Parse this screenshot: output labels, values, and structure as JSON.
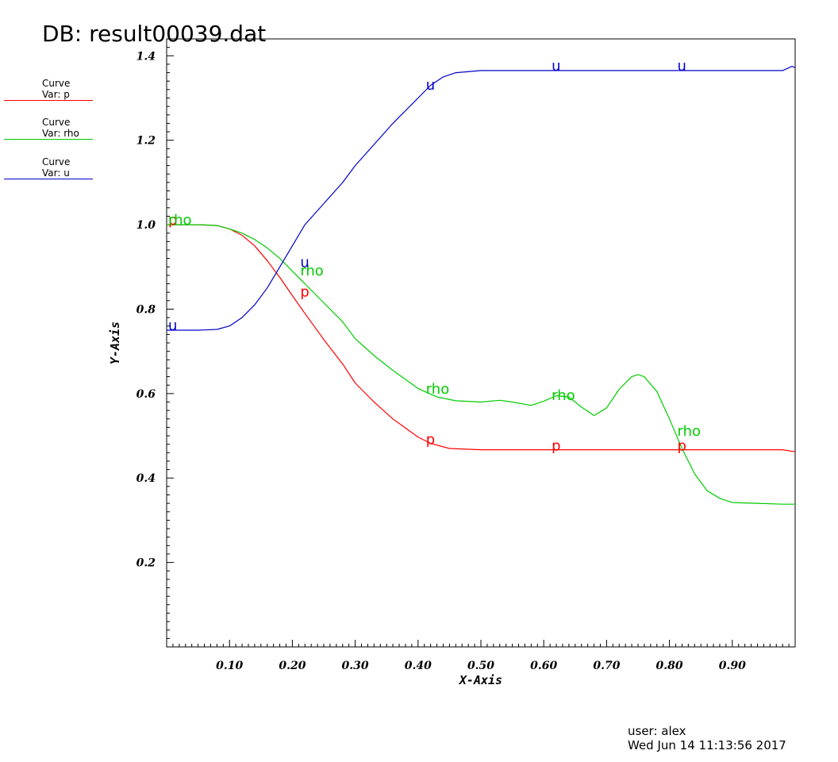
{
  "title": "DB: result00039.dat",
  "legend": [
    {
      "line1": "Curve",
      "line2": "Var: p",
      "color": "#ff0000"
    },
    {
      "line1": "Curve",
      "line2": "Var: rho",
      "color": "#00cc00"
    },
    {
      "line1": "Curve",
      "line2": "Var: u",
      "color": "#0000cc"
    }
  ],
  "footer": {
    "user": "user: alex",
    "date": "Wed Jun 14 11:13:56 2017"
  },
  "chart_data": {
    "type": "line",
    "title": "DB: result00039.dat",
    "xlabel": "X-Axis",
    "ylabel": "Y-Axis",
    "xlim": [
      0.0,
      1.0
    ],
    "ylim": [
      0.0,
      1.44
    ],
    "xticks": [
      0.1,
      0.2,
      0.3,
      0.4,
      0.5,
      0.6,
      0.7,
      0.8,
      0.9
    ],
    "xtick_labels": [
      "0.10",
      "0.20",
      "0.30",
      "0.40",
      "0.50",
      "0.60",
      "0.70",
      "0.80",
      "0.90"
    ],
    "yticks": [
      0.2,
      0.4,
      0.6,
      0.8,
      1.0,
      1.2,
      1.4
    ],
    "ytick_labels": [
      "0.2",
      "0.4",
      "0.6",
      "0.8",
      "1.0",
      "1.2",
      "1.4"
    ],
    "grid": false,
    "series": [
      {
        "name": "p",
        "color": "#ff0000",
        "x": [
          0.0,
          0.05,
          0.08,
          0.1,
          0.12,
          0.14,
          0.16,
          0.18,
          0.2,
          0.22,
          0.25,
          0.28,
          0.3,
          0.33,
          0.36,
          0.4,
          0.42,
          0.45,
          0.5,
          0.6,
          0.7,
          0.8,
          0.9,
          0.98,
          1.0
        ],
        "y": [
          1.0,
          1.0,
          0.998,
          0.99,
          0.975,
          0.95,
          0.915,
          0.875,
          0.832,
          0.79,
          0.728,
          0.67,
          0.625,
          0.58,
          0.54,
          0.497,
          0.482,
          0.47,
          0.467,
          0.467,
          0.467,
          0.467,
          0.467,
          0.467,
          0.462
        ]
      },
      {
        "name": "rho",
        "color": "#00cc00",
        "x": [
          0.0,
          0.05,
          0.08,
          0.1,
          0.12,
          0.14,
          0.16,
          0.18,
          0.2,
          0.22,
          0.25,
          0.28,
          0.3,
          0.33,
          0.36,
          0.4,
          0.43,
          0.46,
          0.5,
          0.53,
          0.55,
          0.58,
          0.6,
          0.62,
          0.64,
          0.66,
          0.68,
          0.7,
          0.72,
          0.74,
          0.75,
          0.76,
          0.78,
          0.8,
          0.82,
          0.84,
          0.86,
          0.88,
          0.9,
          0.94,
          0.98,
          1.0
        ],
        "y": [
          1.0,
          1.0,
          0.998,
          0.99,
          0.98,
          0.965,
          0.945,
          0.92,
          0.89,
          0.86,
          0.815,
          0.77,
          0.73,
          0.69,
          0.655,
          0.612,
          0.592,
          0.583,
          0.58,
          0.584,
          0.58,
          0.572,
          0.582,
          0.595,
          0.592,
          0.568,
          0.548,
          0.566,
          0.61,
          0.64,
          0.645,
          0.64,
          0.605,
          0.54,
          0.47,
          0.41,
          0.37,
          0.352,
          0.342,
          0.34,
          0.338,
          0.338
        ]
      },
      {
        "name": "u",
        "color": "#0000cc",
        "x": [
          0.0,
          0.05,
          0.08,
          0.1,
          0.12,
          0.14,
          0.16,
          0.18,
          0.2,
          0.22,
          0.25,
          0.28,
          0.3,
          0.33,
          0.36,
          0.4,
          0.42,
          0.44,
          0.46,
          0.5,
          0.6,
          0.7,
          0.8,
          0.9,
          0.98,
          0.995,
          1.0
        ],
        "y": [
          0.75,
          0.75,
          0.752,
          0.76,
          0.78,
          0.81,
          0.85,
          0.9,
          0.95,
          1.0,
          1.05,
          1.1,
          1.14,
          1.19,
          1.24,
          1.3,
          1.33,
          1.35,
          1.36,
          1.365,
          1.365,
          1.365,
          1.365,
          1.365,
          1.365,
          1.375,
          1.372
        ]
      }
    ],
    "curve_labels": [
      {
        "text": "p",
        "series": "p",
        "x": 0.0,
        "y": 1.0
      },
      {
        "text": "p",
        "series": "p",
        "x": 0.21,
        "y": 0.83
      },
      {
        "text": "p",
        "series": "p",
        "x": 0.41,
        "y": 0.48
      },
      {
        "text": "p",
        "series": "p",
        "x": 0.61,
        "y": 0.465
      },
      {
        "text": "p",
        "series": "p",
        "x": 0.81,
        "y": 0.465
      },
      {
        "text": "rho",
        "series": "rho",
        "x": 0.0,
        "y": 1.0
      },
      {
        "text": "rho",
        "series": "rho",
        "x": 0.21,
        "y": 0.88
      },
      {
        "text": "rho",
        "series": "rho",
        "x": 0.41,
        "y": 0.6
      },
      {
        "text": "rho",
        "series": "rho",
        "x": 0.61,
        "y": 0.585
      },
      {
        "text": "rho",
        "series": "rho",
        "x": 0.81,
        "y": 0.5
      },
      {
        "text": "u",
        "series": "u",
        "x": 0.0,
        "y": 0.75
      },
      {
        "text": "u",
        "series": "u",
        "x": 0.21,
        "y": 0.9
      },
      {
        "text": "u",
        "series": "u",
        "x": 0.41,
        "y": 1.32
      },
      {
        "text": "u",
        "series": "u",
        "x": 0.61,
        "y": 1.365
      },
      {
        "text": "u",
        "series": "u",
        "x": 0.81,
        "y": 1.365
      }
    ]
  }
}
